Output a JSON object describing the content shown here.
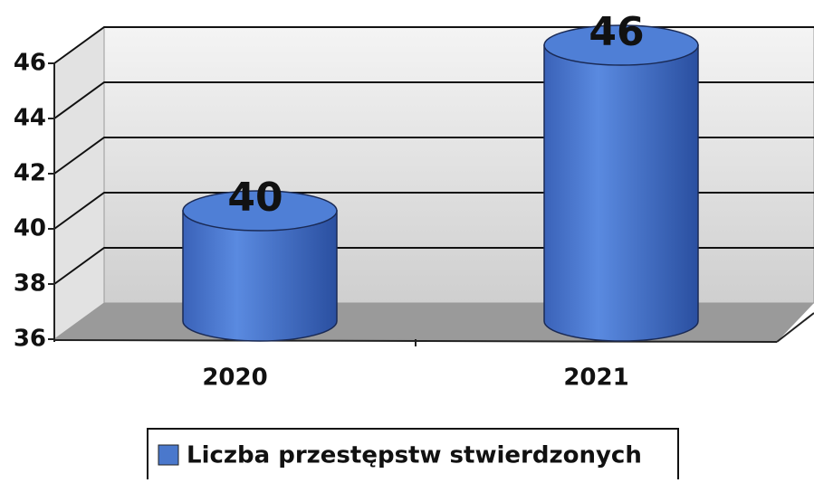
{
  "chart_data": {
    "type": "bar",
    "categories": [
      "2020",
      "2021"
    ],
    "series": [
      {
        "name": "Liczba przestępstw stwierdzonych",
        "color": "#4a78cc",
        "values": [
          40,
          46
        ]
      }
    ],
    "ylim": [
      36,
      46
    ],
    "yticks": [
      36,
      38,
      40,
      42,
      44,
      46
    ],
    "grid": true,
    "legend": "bottom"
  }
}
